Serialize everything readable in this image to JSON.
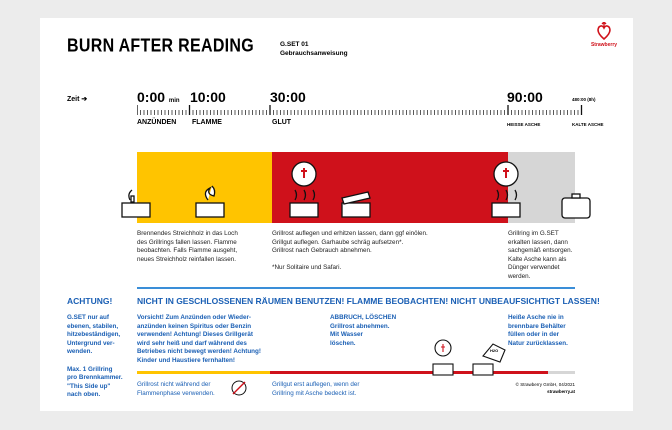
{
  "header": {
    "title": "BURN AFTER READING",
    "product": "G.SET 01",
    "doc": "Gebrauchsanweisung",
    "brand": "Strawberry"
  },
  "timeline": {
    "label": "Zeit",
    "arrow": "➔",
    "marks": [
      {
        "time": "0:00",
        "unit": "min",
        "phase": "ANZÜNDEN"
      },
      {
        "time": "10:00",
        "phase": "FLAMME"
      },
      {
        "time": "30:00",
        "phase": "GLUT"
      },
      {
        "time": "90:00",
        "phase": "HEISSE ASCHE"
      },
      {
        "time": "480:00 (8h)",
        "phase": "KALTE ASCHE"
      }
    ]
  },
  "phases": {
    "colors": {
      "anzuenden": "#ffc400",
      "glut": "#cf111b",
      "asche": "#d6d6d6"
    },
    "text1": [
      "Brennendes Streichholz in das Loch",
      "des Grillrings fallen lassen. Flamme",
      "beobachten. Falls Flamme ausgeht,",
      "neues Streichholz reinfallen lassen."
    ],
    "text2": [
      "Grillrost auflegen und erhitzen lassen, dann ggf einölen.",
      "Grillgut auflegen. Garhaube schräg aufsetzen*.",
      "Grillrost nach Gebrauch abnehmen.",
      "",
      "*Nur Solitaire und Safari."
    ],
    "text3": [
      "Grillring im G.SET",
      "erkalten lassen, dann",
      "sachgemäß entsorgen.",
      "Kalte Asche kann als",
      "Dünger verwendet",
      "werden."
    ]
  },
  "warnings": {
    "achtung": "ACHTUNG!",
    "banner": "NICHT IN GESCHLOSSENEN RÄUMEN BENUTZEN! FLAMME BEOBACHTEN! NICHT UNBEAUFSICHTIGT LASSEN!",
    "left": [
      "G.SET nur auf",
      "ebenen, stabilen,",
      "hitzebeständigen,",
      "Untergrund ver-",
      "wenden.",
      "",
      "Max. 1 Grillring",
      "pro Brennkammer.",
      "\"This Side up\"",
      "nach oben."
    ],
    "vorsicht": [
      "Vorsicht! Zum Anzünden oder Wieder-",
      "anzünden keinen Spiritus oder Benzin",
      "verwenden! Achtung! Dieses Grillgerät",
      "wird sehr heiß und darf während des",
      "Betriebes nicht bewegt werden! Achtung!",
      "Kinder und Haustiere fernhalten!"
    ],
    "abbruch_title": "ABBRUCH, LÖSCHEN",
    "abbruch": [
      "Grillrost abnehmen.",
      "Mit Wasser",
      "löschen."
    ],
    "asche": [
      "Heiße Asche nie in",
      "brennbare Behälter",
      "füllen oder in der",
      "Natur zurücklassen."
    ],
    "note1": [
      "Grillrost nicht während der",
      "Flammenphase verwenden."
    ],
    "note2": [
      "Grillgut erst auflegen, wenn der",
      "Grillring mit Asche bedeckt ist."
    ],
    "water_label": "H2O"
  },
  "footer": {
    "copyright": "© Strawberry GmbH, 04/2021",
    "url": "strawberry.at"
  }
}
